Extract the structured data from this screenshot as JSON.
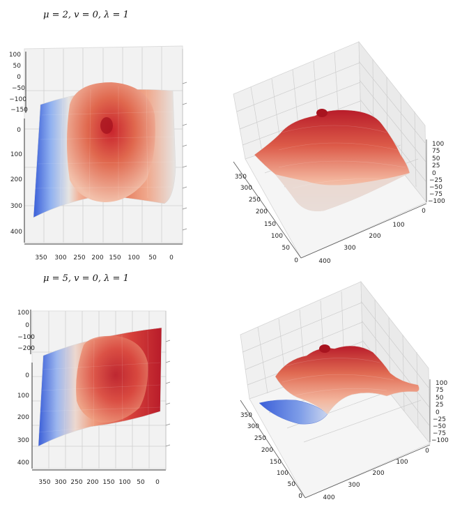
{
  "captions": {
    "row1": "μ = 2, v = 0, λ = 1",
    "row2": "μ = 5, v = 0, λ = 1"
  },
  "colors": {
    "surface_high": "#c8222c",
    "surface_mid": "#e8896a",
    "surface_neutral": "#e6e4e2",
    "surface_low": "#3a5ed8",
    "pane": "#f2f2f2",
    "grid": "#c8c8c8"
  },
  "chart_data": [
    {
      "type": "surface",
      "view": "top",
      "x_ticks": [
        "350",
        "300",
        "250",
        "200",
        "150",
        "100",
        "50",
        "0"
      ],
      "y_ticks": [
        "0",
        "100",
        "200",
        "300",
        "400"
      ],
      "z_ticks": [
        "100",
        "50",
        "0",
        "−50",
        "−100",
        "−150"
      ],
      "xlim": [
        0,
        380
      ],
      "ylim": [
        0,
        420
      ],
      "zlim": [
        -150,
        100
      ],
      "colormap": "coolwarm"
    },
    {
      "type": "surface",
      "view": "oblique",
      "x_ticks": [
        "0",
        "100",
        "200",
        "300",
        "400"
      ],
      "y_ticks": [
        "350",
        "300",
        "250",
        "200",
        "150",
        "100",
        "50",
        "0"
      ],
      "z_ticks": [
        "100",
        "75",
        "50",
        "25",
        "0",
        "−25",
        "−50",
        "−75",
        "−100"
      ],
      "zlim": [
        -100,
        100
      ],
      "colormap": "coolwarm"
    },
    {
      "type": "surface",
      "view": "top",
      "x_ticks": [
        "350",
        "300",
        "250",
        "200",
        "150",
        "100",
        "50",
        "0"
      ],
      "y_ticks": [
        "0",
        "100",
        "200",
        "300",
        "400"
      ],
      "z_ticks": [
        "100",
        "0",
        "−100",
        "−200"
      ],
      "xlim": [
        0,
        380
      ],
      "ylim": [
        0,
        420
      ],
      "zlim": [
        -200,
        100
      ],
      "colormap": "coolwarm"
    },
    {
      "type": "surface",
      "view": "oblique",
      "x_ticks": [
        "0",
        "100",
        "200",
        "300",
        "400"
      ],
      "y_ticks": [
        "350",
        "300",
        "250",
        "200",
        "150",
        "100",
        "50",
        "0"
      ],
      "z_ticks": [
        "100",
        "75",
        "50",
        "25",
        "0",
        "−25",
        "−50",
        "−75",
        "−100"
      ],
      "zlim": [
        -100,
        100
      ],
      "colormap": "coolwarm"
    }
  ]
}
